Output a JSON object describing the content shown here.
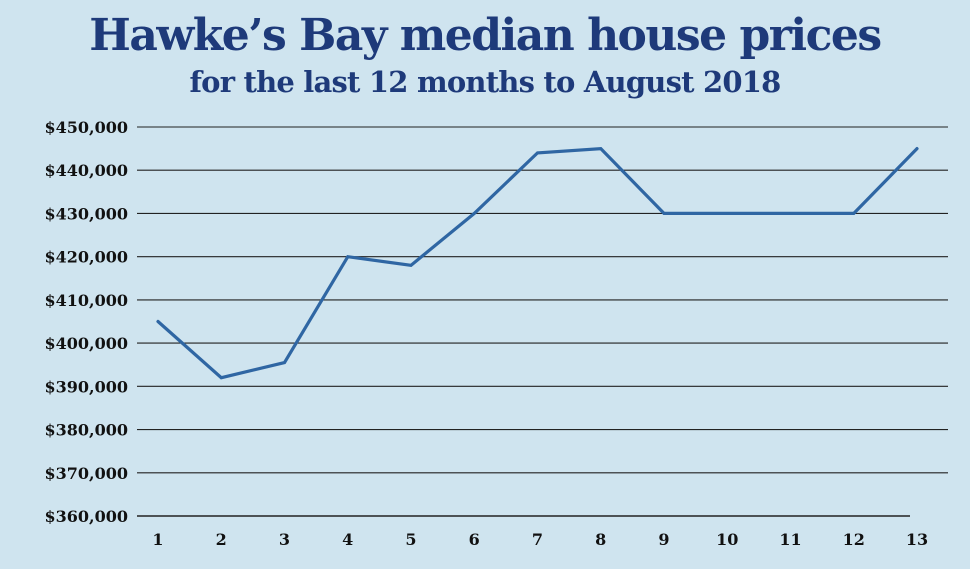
{
  "chart_data": {
    "type": "line",
    "title": "Hawke’s Bay median house prices",
    "subtitle": "for the last 12 months to August 2018",
    "xlabel": "",
    "ylabel": "",
    "categories": [
      "1",
      "2",
      "3",
      "4",
      "5",
      "6",
      "7",
      "8",
      "9",
      "10",
      "11",
      "12",
      "13"
    ],
    "series": [
      {
        "values": [
          405000,
          392000,
          395500,
          420000,
          418000,
          430000,
          444000,
          445000,
          430000,
          430000,
          430000,
          430000,
          445000
        ]
      }
    ],
    "ylim": [
      360000,
      450000
    ],
    "yticks": [
      360000,
      370000,
      380000,
      390000,
      400000,
      410000,
      420000,
      430000,
      440000,
      450000
    ],
    "ytick_labels": [
      "$360,000",
      "$370,000",
      "$380,000",
      "$390,000",
      "$400,000",
      "$410,000",
      "$420,000",
      "$430,000",
      "$440,000",
      "$450,000"
    ],
    "grid": true,
    "line_color": "#2f66a3",
    "grid_color": "#222222",
    "background": "#cfe4ef"
  }
}
